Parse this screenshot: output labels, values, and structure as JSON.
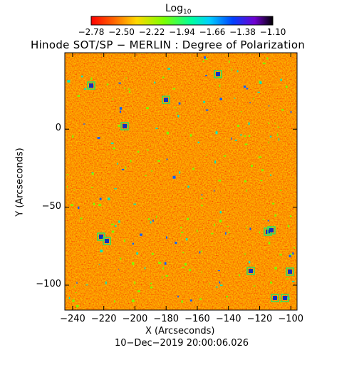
{
  "colorbar": {
    "label_base": "Log",
    "label_sub": "10",
    "tick_labels": [
      "−2.78",
      "−2.50",
      "−2.22",
      "−1.94",
      "−1.66",
      "−1.38",
      "−1.10"
    ],
    "range": [
      -2.78,
      -1.1
    ],
    "colormap": "rainbow: red-orange-yellow-green-cyan-blue-violet-black"
  },
  "title": "Hinode SOT/SP − MERLIN : Degree of Polarization",
  "axes": {
    "xlabel": "X (Arcseconds)",
    "ylabel": "Y (Arcseconds)",
    "x_ticks": [
      "−240",
      "−220",
      "−200",
      "−180",
      "−160",
      "−140",
      "−120",
      "−100"
    ],
    "y_ticks": [
      "0",
      "−50",
      "−100"
    ],
    "xlim": [
      -245,
      -96
    ],
    "ylim": [
      -116,
      49
    ]
  },
  "timestamp": "10−Dec−2019 20:00:06.026",
  "colors": {
    "background": "#ffffff",
    "dominant_map": "#f06000",
    "axes": "#000000"
  }
}
